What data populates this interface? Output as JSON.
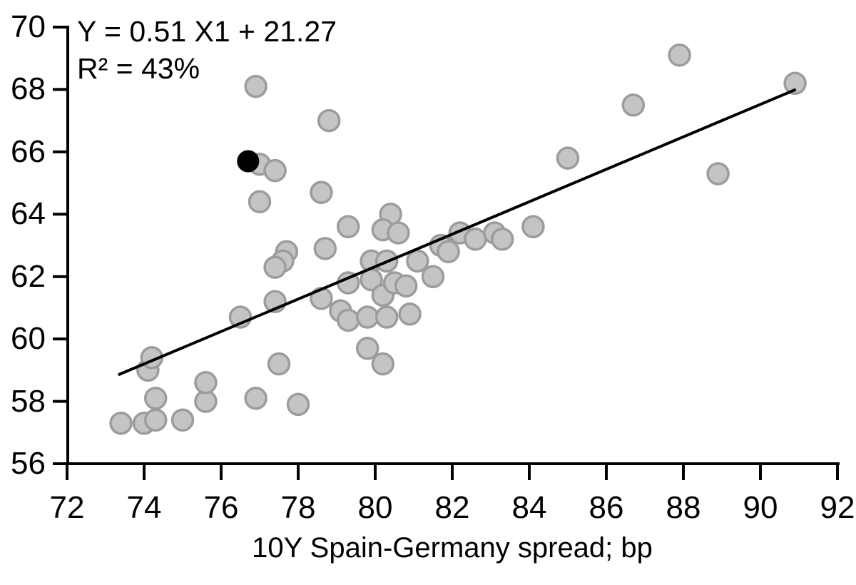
{
  "chart_data": {
    "type": "scatter",
    "title": "",
    "xlabel": "10Y Spain-Germany spread; bp",
    "ylabel": "",
    "xlim": [
      72,
      92
    ],
    "ylim": [
      56,
      70
    ],
    "x_ticks": [
      72,
      74,
      76,
      78,
      80,
      82,
      84,
      86,
      88,
      90,
      92
    ],
    "y_ticks": [
      56,
      58,
      60,
      62,
      64,
      66,
      68,
      70
    ],
    "grid": false,
    "legend": "none",
    "annotation": {
      "line1": "Y = 0.51 X1 + 21.27",
      "line2": "R² = 43%"
    },
    "regression_line": {
      "x1": 73.33,
      "y1": 58.85,
      "x2": 90.92,
      "y2": 68.0
    },
    "series": [
      {
        "name": "observations",
        "marker_fill": "#c4c4c4",
        "marker_border": "#9c9c9c",
        "points": [
          [
            73.4,
            57.3
          ],
          [
            74.0,
            57.3
          ],
          [
            74.1,
            59.0
          ],
          [
            74.2,
            59.4
          ],
          [
            74.3,
            57.4
          ],
          [
            74.3,
            58.1
          ],
          [
            75.0,
            57.4
          ],
          [
            75.6,
            58.0
          ],
          [
            75.6,
            58.6
          ],
          [
            76.5,
            60.7
          ],
          [
            76.9,
            58.1
          ],
          [
            77.5,
            59.2
          ],
          [
            78.0,
            57.9
          ],
          [
            76.9,
            68.1
          ],
          [
            78.8,
            67.0
          ],
          [
            77.0,
            65.6
          ],
          [
            77.4,
            65.4
          ],
          [
            77.0,
            64.4
          ],
          [
            78.6,
            64.7
          ],
          [
            77.7,
            62.8
          ],
          [
            77.6,
            62.5
          ],
          [
            77.4,
            62.3
          ],
          [
            77.4,
            61.2
          ],
          [
            79.3,
            63.6
          ],
          [
            80.4,
            64.0
          ],
          [
            80.2,
            63.5
          ],
          [
            80.6,
            63.4
          ],
          [
            78.7,
            62.9
          ],
          [
            79.9,
            62.5
          ],
          [
            80.3,
            62.5
          ],
          [
            81.1,
            62.5
          ],
          [
            81.5,
            62.0
          ],
          [
            79.3,
            61.8
          ],
          [
            79.9,
            61.9
          ],
          [
            80.2,
            61.4
          ],
          [
            80.5,
            61.8
          ],
          [
            80.8,
            61.7
          ],
          [
            78.6,
            61.3
          ],
          [
            79.1,
            60.9
          ],
          [
            79.3,
            60.6
          ],
          [
            79.8,
            60.7
          ],
          [
            80.3,
            60.7
          ],
          [
            80.9,
            60.8
          ],
          [
            79.8,
            59.7
          ],
          [
            80.2,
            59.2
          ],
          [
            81.7,
            63.0
          ],
          [
            81.9,
            62.8
          ],
          [
            82.2,
            63.4
          ],
          [
            82.6,
            63.2
          ],
          [
            83.1,
            63.4
          ],
          [
            83.3,
            63.2
          ],
          [
            84.1,
            63.6
          ],
          [
            85.0,
            65.8
          ],
          [
            86.7,
            67.5
          ],
          [
            87.9,
            69.1
          ],
          [
            88.9,
            65.3
          ],
          [
            90.9,
            68.2
          ]
        ]
      },
      {
        "name": "highlighted-observation",
        "marker_fill": "#000000",
        "marker_border": "#000000",
        "points": [
          [
            76.7,
            65.7
          ]
        ]
      }
    ],
    "axis_color": "#000000",
    "line_color": "#000000"
  }
}
